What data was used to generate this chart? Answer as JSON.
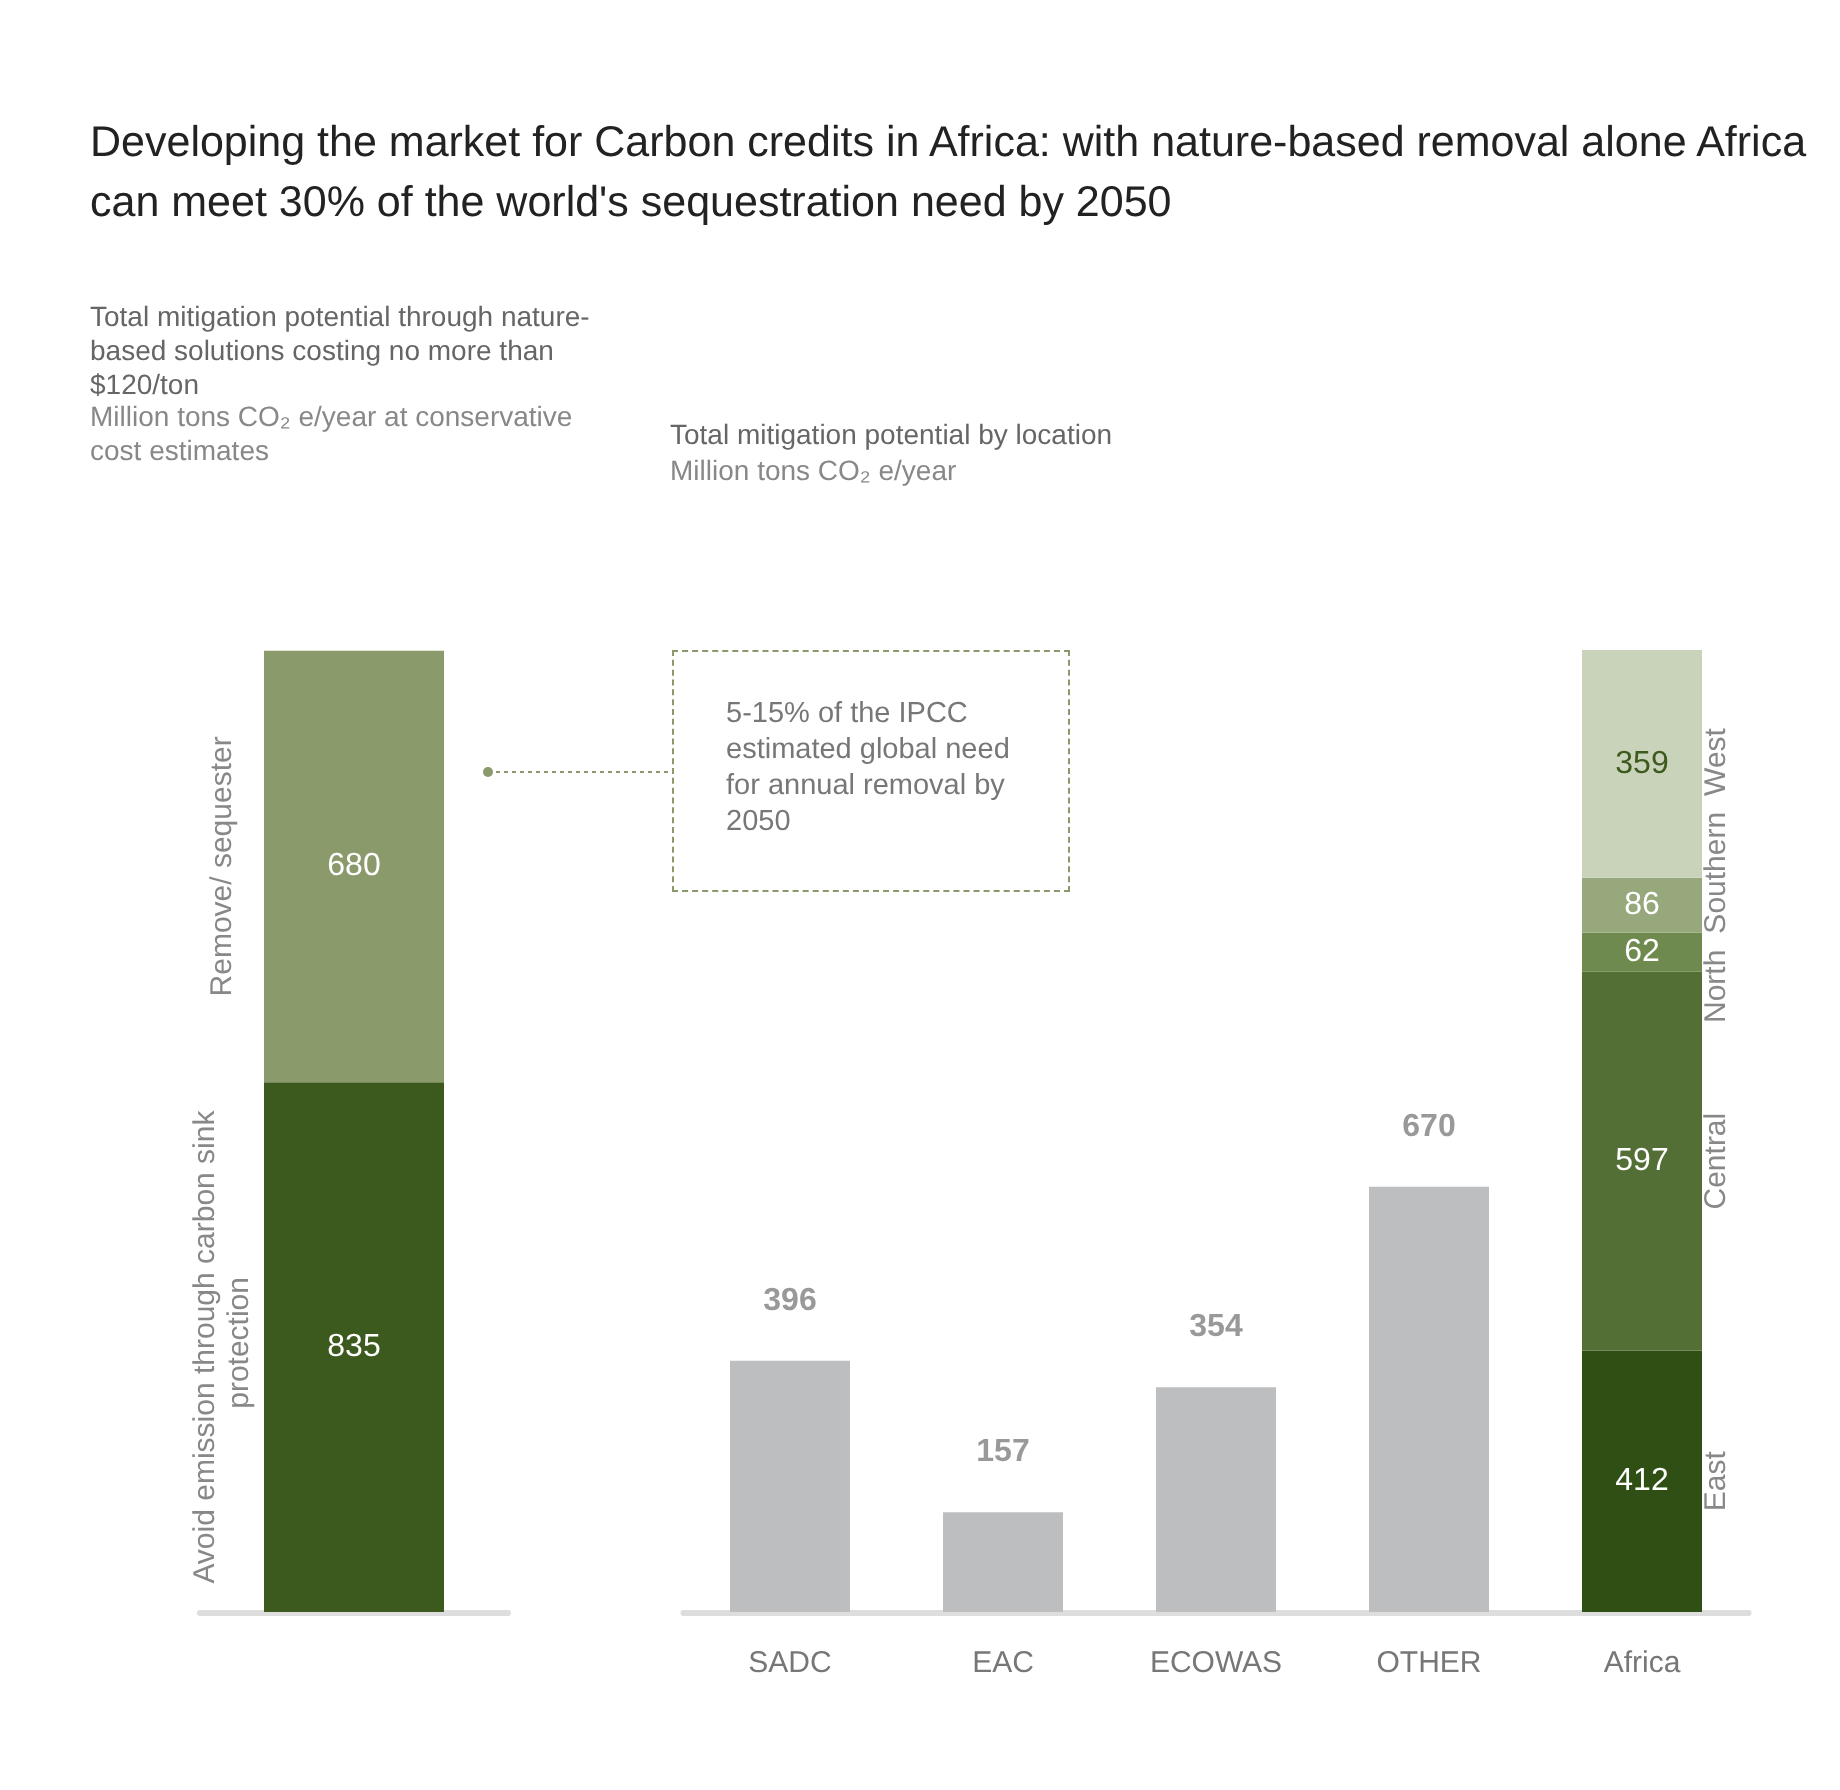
{
  "chart_data": [
    {
      "type": "bar",
      "title": "Developing the market for Carbon credits in Africa: with nature-based removal alone Africa can meet 30% of the world's sequestration need by 2050",
      "subtitle": "Total mitigation potential through nature-based solutions costing no more than $120/ton",
      "ylabel": "Million tons CO₂ e/year at conservative cost estimates",
      "categories": [
        null
      ],
      "stacked": true,
      "data_labels": true,
      "legend": false,
      "series": [
        {
          "name": "Avoid emission through carbon sink protection",
          "color": "#3d5a1e",
          "values": [
            835
          ]
        },
        {
          "name": "Remove/ sequester",
          "color": "#8a9a6a",
          "values": [
            680
          ]
        }
      ],
      "annotations": [
        "5-15% of the IPCC estimated global need for annual removal by 2050"
      ]
    },
    {
      "type": "bar",
      "title": "Total mitigation potential by location",
      "ylabel": "Million tons CO₂ e/year",
      "categories": [
        "SADC",
        "EAC",
        "ECOWAS",
        "OTHER",
        "Africa"
      ],
      "stacked": true,
      "data_labels": true,
      "legend": false,
      "series": [
        {
          "color": "#bdbec0",
          "values": [
            396,
            157,
            354,
            670,
            null
          ]
        },
        {
          "name": "East",
          "color": "#2f4f14",
          "values": [
            null,
            null,
            null,
            null,
            412
          ]
        },
        {
          "name": "Central",
          "color": "#546f35",
          "values": [
            null,
            null,
            null,
            null,
            597
          ]
        },
        {
          "name": "North",
          "color": "#6e8a4e",
          "values": [
            null,
            null,
            null,
            null,
            62
          ]
        },
        {
          "name": "Southern",
          "color": "#97a97c",
          "values": [
            null,
            null,
            null,
            null,
            86
          ]
        },
        {
          "name": "West",
          "color": "#c9d3ba",
          "values": [
            null,
            null,
            null,
            null,
            359
          ]
        }
      ]
    }
  ]
}
